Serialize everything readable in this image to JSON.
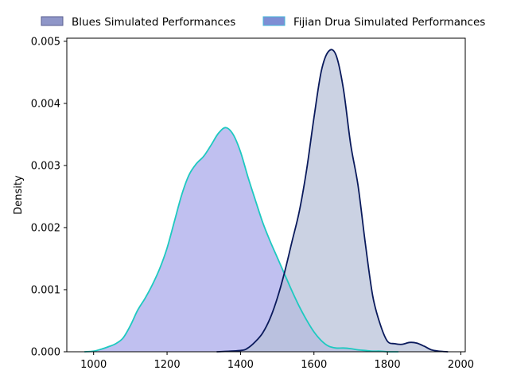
{
  "chart_data": {
    "type": "area",
    "title": "",
    "xlabel": "",
    "ylabel": "Density",
    "xlim": [
      927,
      2012
    ],
    "ylim": [
      0,
      0.00505
    ],
    "xticks": [
      1000,
      1200,
      1400,
      1600,
      1800,
      2000
    ],
    "xtick_labels": [
      "1000",
      "1200",
      "1400",
      "1600",
      "1800",
      "2000"
    ],
    "yticks": [
      0,
      0.001,
      0.002,
      0.003,
      0.004,
      0.005
    ],
    "ytick_labels": [
      "0.000",
      "0.001",
      "0.002",
      "0.003",
      "0.004",
      "0.005"
    ],
    "grid": false,
    "legend_position": "top",
    "series": [
      {
        "name": "Blues Simulated Performances",
        "line_color": "#0a1a5c",
        "fill_color": "#b7c0d8",
        "legend_fill": "#8f96c8",
        "legend_edge": "#5a5f8f",
        "x": [
          1335,
          1400,
          1420,
          1440,
          1460,
          1480,
          1500,
          1520,
          1540,
          1560,
          1580,
          1600,
          1620,
          1640,
          1660,
          1680,
          1700,
          1720,
          1740,
          1760,
          1780,
          1800,
          1820,
          1840,
          1860,
          1880,
          1900,
          1920,
          1940,
          1965
        ],
        "y": [
          0,
          2e-05,
          6e-05,
          0.00016,
          0.0003,
          0.00053,
          0.00086,
          0.00128,
          0.00177,
          0.00226,
          0.00293,
          0.00377,
          0.00452,
          0.00484,
          0.00478,
          0.00424,
          0.00334,
          0.00268,
          0.00174,
          0.0009,
          0.00045,
          0.00017,
          0.00013,
          0.00012,
          0.00015,
          0.00014,
          9e-05,
          3e-05,
          1e-05,
          0
        ]
      },
      {
        "name": "Fijian Drua Simulated Performances",
        "line_color": "#1ec9c0",
        "fill_color": "#c0c0f0",
        "legend_fill": "#7e8ed4",
        "legend_edge": "#45b8d8",
        "x": [
          975,
          1000,
          1020,
          1040,
          1060,
          1080,
          1100,
          1120,
          1140,
          1160,
          1180,
          1200,
          1220,
          1240,
          1260,
          1280,
          1300,
          1320,
          1340,
          1360,
          1380,
          1400,
          1420,
          1440,
          1460,
          1480,
          1500,
          1520,
          1540,
          1560,
          1580,
          1600,
          1620,
          1640,
          1660,
          1680,
          1700,
          1720,
          1740,
          1760,
          1780,
          1800,
          1830
        ],
        "y": [
          0,
          1e-05,
          4e-05,
          8e-05,
          0.00013,
          0.00022,
          0.00042,
          0.00067,
          0.00086,
          0.00108,
          0.00134,
          0.00167,
          0.0021,
          0.00253,
          0.00285,
          0.00303,
          0.00315,
          0.00333,
          0.00352,
          0.00361,
          0.0035,
          0.00322,
          0.00282,
          0.00245,
          0.00209,
          0.00179,
          0.00152,
          0.00125,
          0.00098,
          0.00073,
          0.00051,
          0.00032,
          0.00018,
          9e-05,
          6e-05,
          6e-05,
          5e-05,
          3e-05,
          2e-05,
          1e-05,
          1e-05,
          0,
          0
        ]
      }
    ]
  }
}
